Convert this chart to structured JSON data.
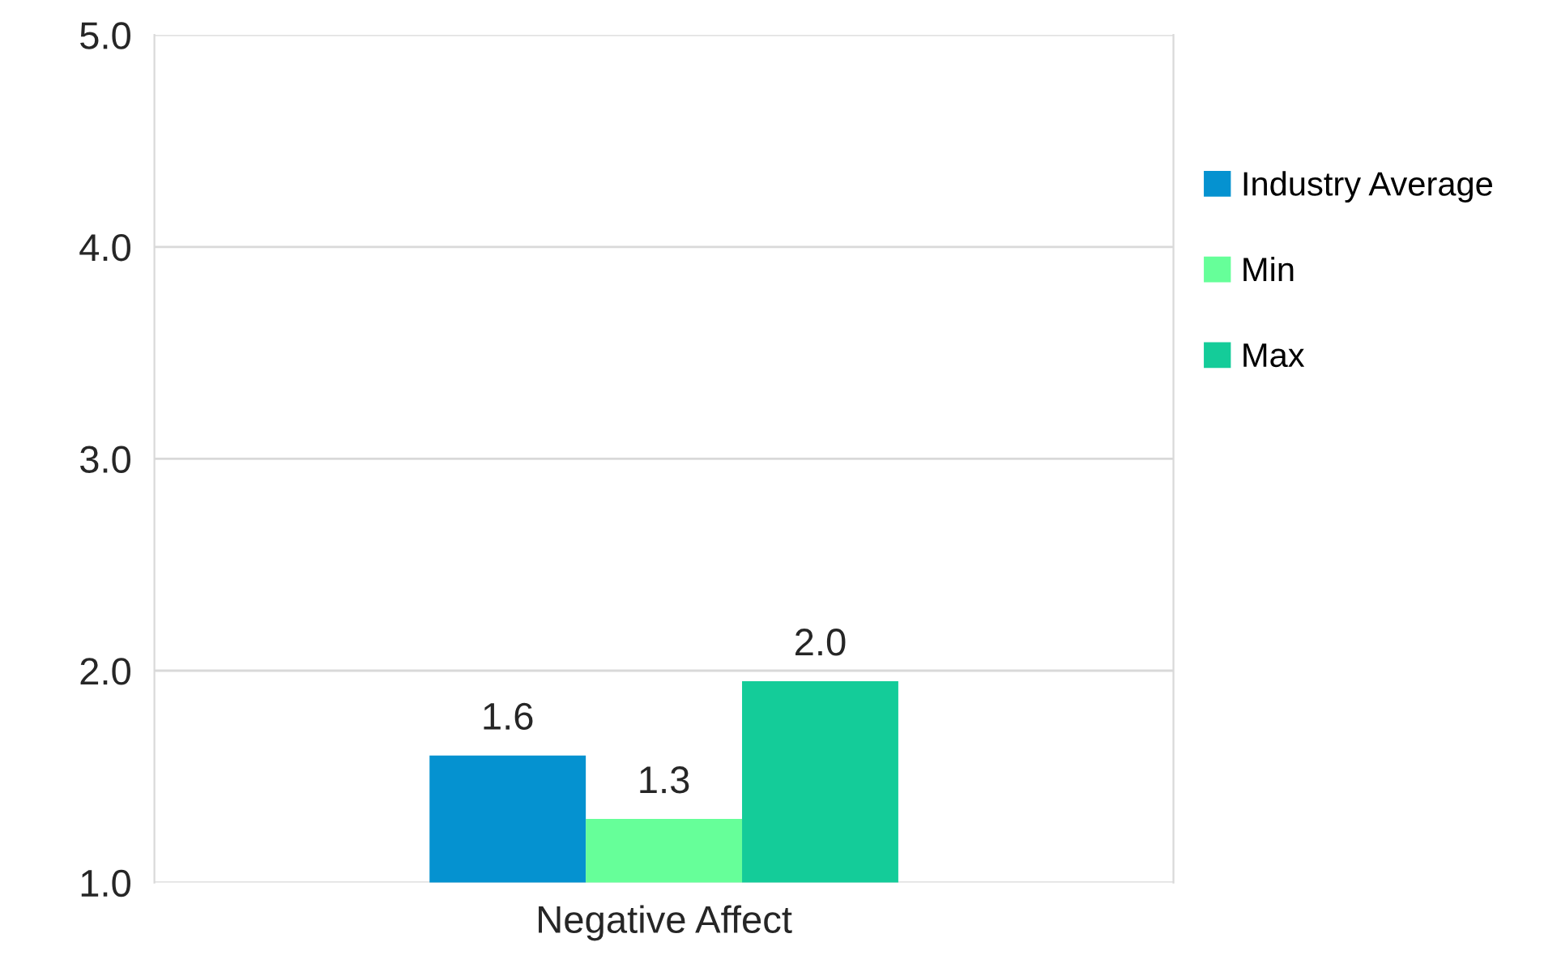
{
  "chart_data": {
    "type": "bar",
    "categories": [
      "Negative Affect"
    ],
    "series": [
      {
        "name": "Industry Average",
        "color": "#0592d0",
        "values": [
          1.6
        ],
        "value_labels": [
          "1.6"
        ]
      },
      {
        "name": "Min",
        "color": "#66ff99",
        "values": [
          1.3
        ],
        "value_labels": [
          "1.3"
        ]
      },
      {
        "name": "Max",
        "color": "#14cc99",
        "values": [
          1.95
        ],
        "value_labels": [
          "2.0"
        ]
      }
    ],
    "ylim": [
      1.0,
      5.0
    ],
    "yticks": [
      {
        "value": 1.0,
        "label": "1.0"
      },
      {
        "value": 2.0,
        "label": "2.0"
      },
      {
        "value": 3.0,
        "label": "3.0"
      },
      {
        "value": 4.0,
        "label": "4.0"
      },
      {
        "value": 5.0,
        "label": "5.0"
      }
    ],
    "grid": "y",
    "legend": "right"
  }
}
